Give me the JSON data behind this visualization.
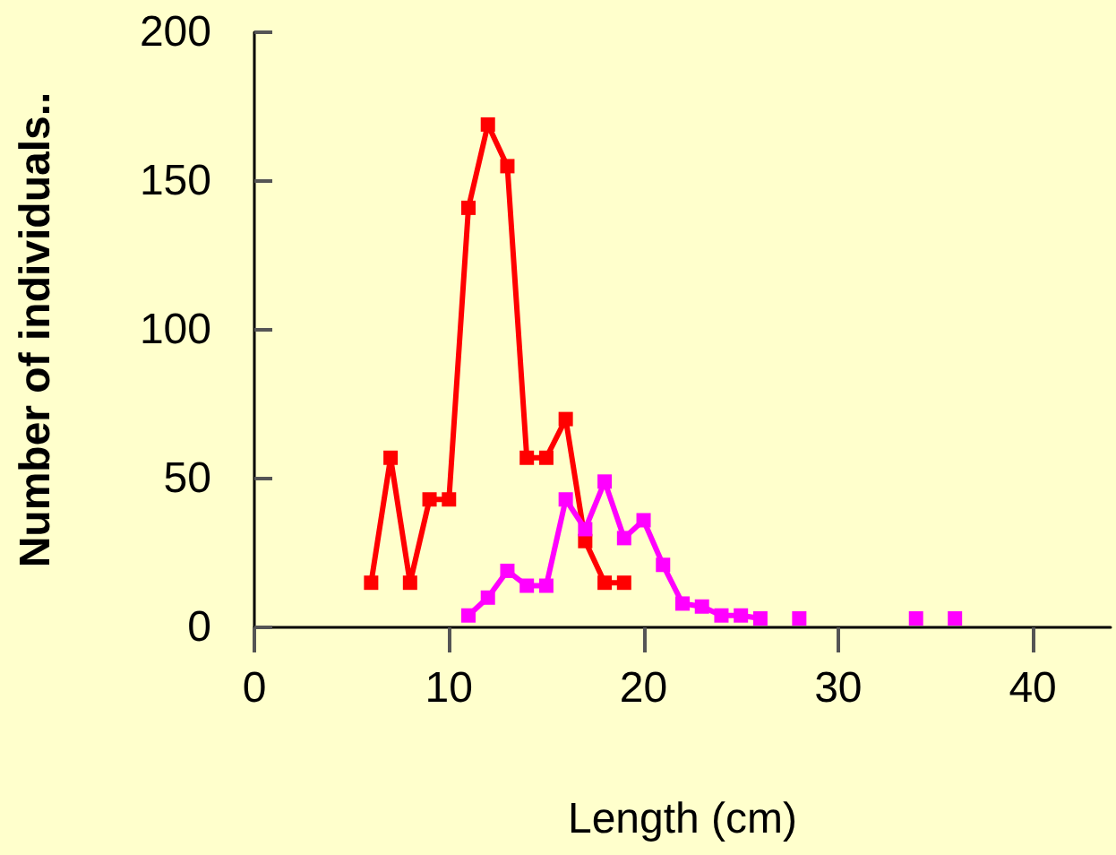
{
  "chart_data": {
    "type": "line",
    "xlabel": "Length (cm)",
    "ylabel": "Number of individuals..",
    "xlim": [
      0,
      44
    ],
    "xticks": [
      0,
      10,
      20,
      30,
      40
    ],
    "ylim": [
      0,
      200
    ],
    "yticks": [
      0,
      50,
      100,
      150,
      200
    ],
    "grid": false,
    "marker": "square",
    "line_style": "solid",
    "series": [
      {
        "color": "#ff0000",
        "x": [
          6,
          7,
          8,
          9,
          10,
          11,
          12,
          13,
          14,
          15,
          16,
          17,
          18,
          19
        ],
        "values": [
          15,
          57,
          15,
          43,
          43,
          141,
          169,
          155,
          57,
          57,
          70,
          29,
          15,
          15
        ]
      },
      {
        "color": "#ff00ff",
        "x": [
          11,
          12,
          13,
          14,
          15,
          16,
          17,
          18,
          19,
          20,
          21,
          22,
          23,
          24,
          25,
          26,
          27,
          28,
          29,
          34,
          35,
          36
        ],
        "values": [
          4,
          10,
          19,
          14,
          14,
          43,
          33,
          49,
          30,
          36,
          21,
          8,
          7,
          4,
          4,
          3,
          null,
          3,
          null,
          3,
          null,
          3
        ]
      }
    ]
  }
}
